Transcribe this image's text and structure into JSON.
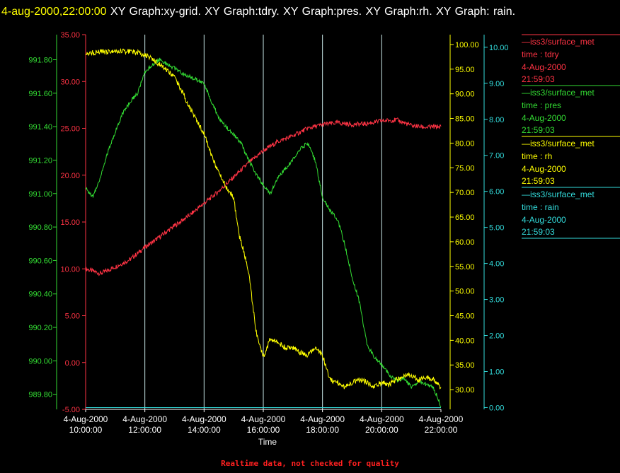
{
  "header": {
    "timestamp": "4-aug-2000,22:00:00",
    "graphs": "XY Graph:xy-grid.  XY Graph:tdry.  XY Graph:pres.  XY Graph:rh.  XY Graph: rain."
  },
  "footer": {
    "note": "Realtime data, not checked for quality",
    "color": "#ff2020"
  },
  "colors": {
    "tdry": "#ff3344",
    "pres": "#33dd33",
    "rh": "#ffff00",
    "rain": "#33dddd",
    "grid": "#c8e8e8"
  },
  "legend": [
    {
      "series": "tdry",
      "source": "—iss3/surface_met",
      "field": "time : tdry",
      "date": "4-Aug-2000",
      "time": "21:59:03"
    },
    {
      "series": "pres",
      "source": "—iss3/surface_met",
      "field": "time : pres",
      "date": "4-Aug-2000",
      "time": "21:59:03"
    },
    {
      "series": "rh",
      "source": "—iss3/surface_met",
      "field": "time : rh",
      "date": "4-Aug-2000",
      "time": "21:59:03"
    },
    {
      "series": "rain",
      "source": "—iss3/surface_met",
      "field": "time : rain",
      "date": "4-Aug-2000",
      "time": "21:59:03"
    }
  ],
  "chart_data": {
    "type": "line",
    "xlabel": "Time",
    "x_range": [
      "4-Aug-2000 10:00:00",
      "4-Aug-2000 22:00:00"
    ],
    "x_ticks": [
      {
        "date": "4-Aug-2000",
        "time": "10:00:00"
      },
      {
        "date": "4-Aug-2000",
        "time": "12:00:00"
      },
      {
        "date": "4-Aug-2000",
        "time": "14:00:00"
      },
      {
        "date": "4-Aug-2000",
        "time": "16:00:00"
      },
      {
        "date": "4-Aug-2000",
        "time": "18:00:00"
      },
      {
        "date": "4-Aug-2000",
        "time": "20:00:00"
      },
      {
        "date": "4-Aug-2000",
        "time": "22:00:00"
      }
    ],
    "grid": "vertical",
    "axes": {
      "pres": {
        "side": "left-outer",
        "ylim": [
          989.71,
          991.95
        ],
        "ticks": [
          "989.80",
          "990.00",
          "990.20",
          "990.40",
          "990.60",
          "990.80",
          "991.00",
          "991.20",
          "991.40",
          "991.60",
          "991.80"
        ]
      },
      "tdry": {
        "side": "left-inner",
        "ylim": [
          -5,
          35
        ],
        "ticks": [
          "-5.00",
          "0.00",
          "5.00",
          "10.00",
          "15.00",
          "20.00",
          "25.00",
          "30.00",
          "35.00"
        ]
      },
      "rh": {
        "side": "right-inner",
        "ylim": [
          26,
          102
        ],
        "ticks": [
          "30.00",
          "35.00",
          "40.00",
          "45.00",
          "50.00",
          "55.00",
          "60.00",
          "65.00",
          "70.00",
          "75.00",
          "80.00",
          "85.00",
          "90.00",
          "95.00",
          "100.00"
        ]
      },
      "rain": {
        "side": "right-outer",
        "ylim": [
          -0.05,
          10.35
        ],
        "ticks": [
          "0.00",
          "1.00",
          "2.00",
          "3.00",
          "4.00",
          "5.00",
          "6.00",
          "7.00",
          "8.00",
          "9.00",
          "10.00"
        ]
      }
    },
    "series": [
      {
        "name": "tdry",
        "x_hours": [
          10,
          10.5,
          11,
          11.5,
          12,
          12.5,
          13,
          13.5,
          14,
          14.5,
          15,
          15.5,
          16,
          16.5,
          17,
          17.5,
          18,
          18.5,
          19,
          19.5,
          20,
          20.5,
          21,
          21.5,
          22
        ],
        "values": [
          10.0,
          9.5,
          10.2,
          11.0,
          12.3,
          13.4,
          14.6,
          15.7,
          17.0,
          18.3,
          19.8,
          21.3,
          22.6,
          23.6,
          24.2,
          25.0,
          25.4,
          25.6,
          25.4,
          25.5,
          25.8,
          25.9,
          25.3,
          25.1,
          25.2
        ]
      },
      {
        "name": "pres",
        "x_hours": [
          10,
          10.25,
          10.5,
          10.75,
          11,
          11.25,
          11.5,
          11.75,
          12,
          12.25,
          12.5,
          12.75,
          13,
          13.25,
          13.5,
          13.75,
          14,
          14.25,
          14.5,
          14.75,
          15,
          15.25,
          15.5,
          15.75,
          16,
          16.25,
          16.5,
          16.75,
          17,
          17.25,
          17.5,
          17.75,
          18,
          18.25,
          18.5,
          18.75,
          19,
          19.25,
          19.5,
          19.75,
          20,
          20.25,
          20.5,
          20.75,
          21,
          21.25,
          21.5,
          21.75,
          22
        ],
        "values": [
          991.03,
          990.98,
          991.1,
          991.25,
          991.37,
          991.48,
          991.55,
          991.6,
          991.72,
          991.77,
          991.8,
          991.77,
          991.75,
          991.72,
          991.7,
          991.68,
          991.66,
          991.55,
          991.45,
          991.4,
          991.35,
          991.3,
          991.2,
          991.12,
          991.05,
          991.0,
          991.1,
          991.15,
          991.2,
          991.27,
          991.3,
          991.2,
          990.98,
          990.9,
          990.85,
          990.7,
          990.5,
          990.35,
          990.1,
          990.02,
          989.98,
          989.92,
          989.88,
          989.9,
          989.84,
          989.88,
          989.86,
          989.84,
          989.73
        ]
      },
      {
        "name": "rh",
        "x_hours": [
          10,
          10.5,
          11,
          11.5,
          12,
          12.5,
          13,
          13.25,
          13.5,
          13.75,
          14,
          14.25,
          14.5,
          14.75,
          15,
          15.1,
          15.2,
          15.3,
          15.5,
          15.75,
          16,
          16.25,
          16.5,
          16.75,
          17,
          17.25,
          17.5,
          17.75,
          18,
          18.25,
          18.5,
          18.75,
          19,
          19.25,
          19.5,
          19.75,
          20,
          20.25,
          20.5,
          20.75,
          21,
          21.25,
          21.5,
          21.75,
          22
        ],
        "values": [
          98.2,
          98.5,
          98.5,
          98.7,
          98.0,
          96.0,
          93.5,
          90.5,
          87.5,
          84.5,
          82.0,
          77.5,
          74.0,
          71.0,
          69.0,
          64.5,
          61.0,
          59.0,
          54.0,
          42.0,
          36.5,
          40.5,
          39.5,
          38.5,
          38.5,
          37.5,
          37.0,
          38.5,
          37.0,
          32.0,
          31.5,
          30.5,
          31.5,
          32.0,
          31.5,
          30.5,
          31.5,
          31.0,
          32.0,
          33.0,
          33.0,
          32.0,
          32.5,
          32.0,
          30.5
        ]
      },
      {
        "name": "rain",
        "x_hours": [
          10,
          22
        ],
        "values": [
          0,
          0
        ]
      }
    ]
  }
}
